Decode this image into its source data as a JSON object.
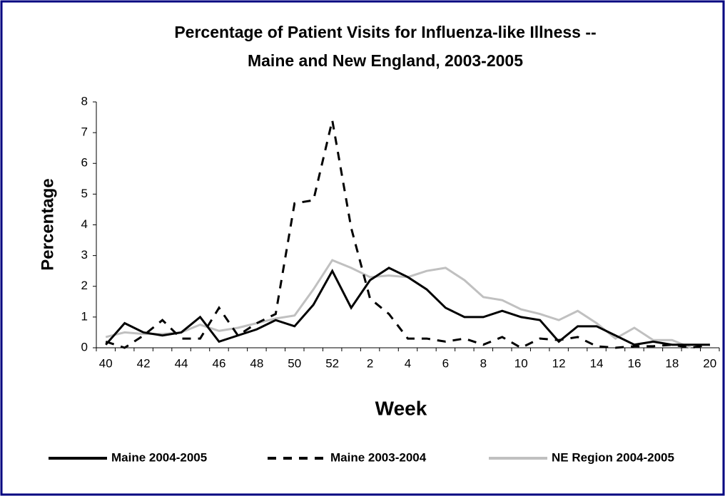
{
  "chart_data": {
    "type": "line",
    "title": [
      "Percentage of Patient Visits for Influenza-like Illness --",
      "Maine and New England, 2003-2005"
    ],
    "x_label": "Week",
    "y_label": "Percentage",
    "categories": [
      "40",
      null,
      "42",
      null,
      "44",
      null,
      "46",
      null,
      "48",
      null,
      "50",
      null,
      "52",
      null,
      "2",
      null,
      "4",
      null,
      "6",
      null,
      "8",
      null,
      "10",
      null,
      "12",
      null,
      "14",
      null,
      "16",
      null,
      "18",
      null,
      "20"
    ],
    "ylim": [
      0,
      8
    ],
    "yticks": [
      0,
      1,
      2,
      3,
      4,
      5,
      6,
      7,
      8
    ],
    "legend": "bottom",
    "series": [
      {
        "name": "Maine 2004-2005",
        "color": "#000000",
        "dashed": false,
        "values": [
          0.1,
          0.8,
          0.5,
          0.4,
          0.5,
          1.0,
          0.2,
          0.4,
          0.6,
          0.9,
          0.7,
          1.4,
          2.5,
          1.3,
          2.2,
          2.6,
          2.3,
          1.9,
          1.3,
          1.0,
          1.0,
          1.2,
          1.0,
          0.9,
          0.2,
          0.7,
          0.7,
          0.4,
          0.1,
          0.2,
          0.1,
          0.1,
          0.1
        ]
      },
      {
        "name": "Maine 2003-2004",
        "color": "#000000",
        "dashed": true,
        "values": [
          0.2,
          0.0,
          0.4,
          0.9,
          0.3,
          0.3,
          1.3,
          0.4,
          0.8,
          1.1,
          4.7,
          4.8,
          7.4,
          3.9,
          1.6,
          1.1,
          0.3,
          0.3,
          0.2,
          0.3,
          0.1,
          0.35,
          0.0,
          0.3,
          0.25,
          0.35,
          0.05,
          0.0,
          0.05,
          0.05,
          0.1,
          0.0,
          0.1
        ]
      },
      {
        "name": "NE Region 2004-2005",
        "color": "#c0c0c0",
        "dashed": false,
        "values": [
          0.35,
          0.5,
          0.45,
          0.45,
          0.5,
          0.75,
          0.55,
          0.65,
          0.8,
          0.95,
          1.05,
          1.9,
          2.85,
          2.6,
          2.3,
          2.35,
          2.3,
          2.5,
          2.6,
          2.2,
          1.65,
          1.55,
          1.25,
          1.1,
          0.9,
          1.2,
          0.8,
          0.3,
          0.65,
          0.25,
          0.25,
          0.0,
          null
        ]
      }
    ]
  }
}
